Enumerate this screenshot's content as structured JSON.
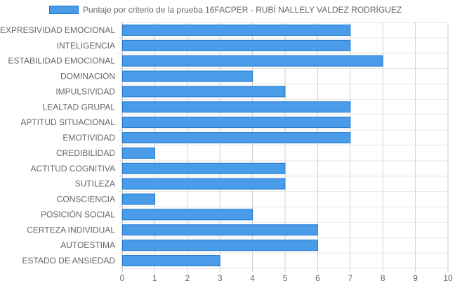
{
  "chart_data": {
    "type": "bar",
    "orientation": "horizontal",
    "categories": [
      "EXPRESIVIDAD EMOCIONAL",
      "INTELIGENCIA",
      "ESTABILIDAD EMOCIONAL",
      "DOMINACIÓN",
      "IMPULSIVIDAD",
      "LEALTAD GRUPAL",
      "APTITUD SITUACIONAL",
      "EMOTIVIDAD",
      "CREDIBILIDAD",
      "ACTITUD COGNITIVA",
      "SUTILEZA",
      "CONSCIENCIA",
      "POSICIÓN SOCIAL",
      "CERTEZA INDIVIDUAL",
      "AUTOESTIMA",
      "ESTADO DE ANSIEDAD"
    ],
    "series": [
      {
        "name": "Puntaje por criterio de la prueba 16FACPER - RUBÍ NALLELY VALDEZ RODRÍGUEZ",
        "values": [
          7,
          7,
          8,
          4,
          5,
          7,
          7,
          7,
          1,
          5,
          5,
          1,
          4,
          6,
          6,
          3
        ],
        "color": "#4a9ce9",
        "border_color": "#1f78d1"
      }
    ],
    "xlim": [
      0,
      10
    ],
    "xticks": [
      "0",
      "1",
      "2",
      "3",
      "4",
      "5",
      "6",
      "7",
      "8",
      "9",
      "10"
    ],
    "grid": true,
    "legend_position": "top"
  }
}
